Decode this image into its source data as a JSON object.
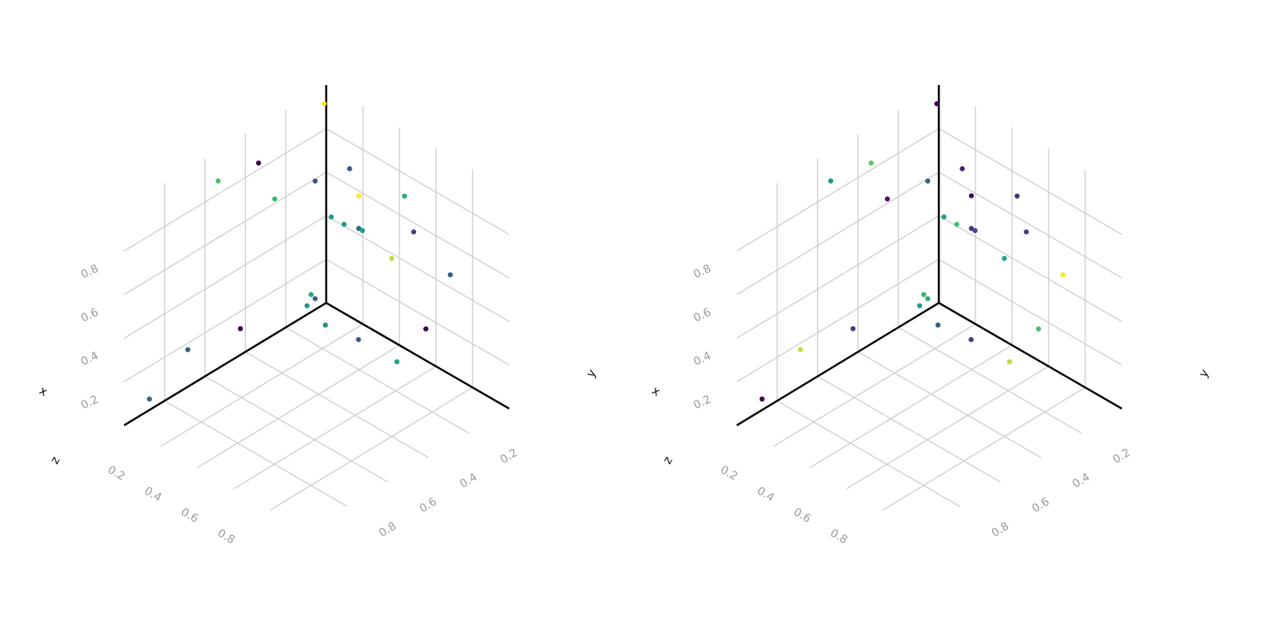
{
  "chart_data": [
    {
      "type": "scatter",
      "projection": "3d",
      "title": "",
      "xlabel": "x",
      "ylabel": "y",
      "zlabel": "z",
      "xlim": [
        0,
        1
      ],
      "ylim": [
        0,
        1
      ],
      "zlim": [
        0,
        1
      ],
      "xticks": [
        "0.2",
        "0.4",
        "0.6",
        "0.8"
      ],
      "yticks": [
        "0.2",
        "0.4",
        "0.6",
        "0.8"
      ],
      "zticks": [
        "0.2",
        "0.4",
        "0.6",
        "0.8"
      ],
      "grid": true,
      "colormap": "viridis",
      "points": [
        {
          "x": 0.05,
          "y": 0.92,
          "z": 0.1,
          "c": 0.4
        },
        {
          "x": 0.05,
          "y": 0.73,
          "z": 0.22,
          "c": 0.34
        },
        {
          "x": 0.05,
          "y": 0.47,
          "z": 0.17,
          "c": 0.0
        },
        {
          "x": 0.05,
          "y": 0.14,
          "z": 0.09,
          "c": 0.58
        },
        {
          "x": 0.05,
          "y": 0.1,
          "z": 0.1,
          "c": 0.35
        },
        {
          "x": 0.05,
          "y": 0.12,
          "z": 0.13,
          "c": 0.67
        },
        {
          "x": 0.05,
          "y": 0.58,
          "z": 0.91,
          "c": 0.8
        },
        {
          "x": 0.05,
          "y": 0.38,
          "z": 0.88,
          "c": 0.0
        },
        {
          "x": 0.05,
          "y": 0.3,
          "z": 0.67,
          "c": 0.75
        },
        {
          "x": 0.05,
          "y": 0.1,
          "z": 0.64,
          "c": 0.3
        },
        {
          "x": 0.0,
          "y": 0.01,
          "z": 0.92,
          "c": 1.0
        },
        {
          "x": 0.15,
          "y": 0.14,
          "z": 0.05,
          "c": 0.55
        },
        {
          "x": 0.32,
          "y": 0.13,
          "z": 0.06,
          "c": 0.32
        },
        {
          "x": 0.53,
          "y": 0.13,
          "z": 0.06,
          "c": 0.65
        },
        {
          "x": 0.6,
          "y": 0.05,
          "z": 0.2,
          "c": 0.0
        },
        {
          "x": 0.15,
          "y": 0.02,
          "z": 0.7,
          "c": 0.33
        },
        {
          "x": 0.2,
          "y": 0.02,
          "z": 0.6,
          "c": 1.0
        },
        {
          "x": 0.05,
          "y": 0.02,
          "z": 0.43,
          "c": 0.6
        },
        {
          "x": 0.12,
          "y": 0.02,
          "z": 0.43,
          "c": 0.62
        },
        {
          "x": 0.2,
          "y": 0.02,
          "z": 0.45,
          "c": 0.38
        },
        {
          "x": 0.22,
          "y": 0.02,
          "z": 0.45,
          "c": 0.62
        },
        {
          "x": 0.45,
          "y": 0.02,
          "z": 0.72,
          "c": 0.68
        },
        {
          "x": 0.5,
          "y": 0.02,
          "z": 0.58,
          "c": 0.22
        },
        {
          "x": 0.38,
          "y": 0.02,
          "z": 0.4,
          "c": 0.95
        },
        {
          "x": 0.7,
          "y": 0.02,
          "z": 0.48,
          "c": 0.34
        }
      ]
    },
    {
      "type": "scatter",
      "projection": "3d",
      "title": "",
      "xlabel": "x",
      "ylabel": "y",
      "zlabel": "z",
      "xlim": [
        0,
        1
      ],
      "ylim": [
        0,
        1
      ],
      "zlim": [
        0,
        1
      ],
      "xticks": [
        "0.2",
        "0.4",
        "0.6",
        "0.8"
      ],
      "yticks": [
        "0.2",
        "0.4",
        "0.6",
        "0.8"
      ],
      "zticks": [
        "0.2",
        "0.4",
        "0.6",
        "0.8"
      ],
      "grid": true,
      "colormap": "viridis",
      "points": [
        {
          "x": 0.05,
          "y": 0.92,
          "z": 0.1,
          "c": 0.0
        },
        {
          "x": 0.05,
          "y": 0.73,
          "z": 0.22,
          "c": 0.95
        },
        {
          "x": 0.05,
          "y": 0.47,
          "z": 0.17,
          "c": 0.2
        },
        {
          "x": 0.05,
          "y": 0.14,
          "z": 0.09,
          "c": 0.62
        },
        {
          "x": 0.05,
          "y": 0.1,
          "z": 0.1,
          "c": 0.7
        },
        {
          "x": 0.05,
          "y": 0.12,
          "z": 0.13,
          "c": 0.75
        },
        {
          "x": 0.05,
          "y": 0.58,
          "z": 0.91,
          "c": 0.6
        },
        {
          "x": 0.05,
          "y": 0.38,
          "z": 0.88,
          "c": 0.85
        },
        {
          "x": 0.05,
          "y": 0.3,
          "z": 0.67,
          "c": 0.05
        },
        {
          "x": 0.05,
          "y": 0.1,
          "z": 0.64,
          "c": 0.38
        },
        {
          "x": 0.0,
          "y": 0.01,
          "z": 0.92,
          "c": 0.0
        },
        {
          "x": 0.15,
          "y": 0.14,
          "z": 0.05,
          "c": 0.32
        },
        {
          "x": 0.32,
          "y": 0.13,
          "z": 0.06,
          "c": 0.22
        },
        {
          "x": 0.53,
          "y": 0.13,
          "z": 0.06,
          "c": 0.95
        },
        {
          "x": 0.6,
          "y": 0.05,
          "z": 0.2,
          "c": 0.8
        },
        {
          "x": 0.15,
          "y": 0.02,
          "z": 0.7,
          "c": 0.1
        },
        {
          "x": 0.2,
          "y": 0.02,
          "z": 0.6,
          "c": 0.02
        },
        {
          "x": 0.05,
          "y": 0.02,
          "z": 0.43,
          "c": 0.62
        },
        {
          "x": 0.12,
          "y": 0.02,
          "z": 0.43,
          "c": 0.78
        },
        {
          "x": 0.2,
          "y": 0.02,
          "z": 0.45,
          "c": 0.18
        },
        {
          "x": 0.22,
          "y": 0.02,
          "z": 0.45,
          "c": 0.25
        },
        {
          "x": 0.45,
          "y": 0.02,
          "z": 0.72,
          "c": 0.15
        },
        {
          "x": 0.5,
          "y": 0.02,
          "z": 0.58,
          "c": 0.22
        },
        {
          "x": 0.38,
          "y": 0.02,
          "z": 0.4,
          "c": 0.65
        },
        {
          "x": 0.7,
          "y": 0.02,
          "z": 0.48,
          "c": 1.0
        }
      ]
    }
  ]
}
